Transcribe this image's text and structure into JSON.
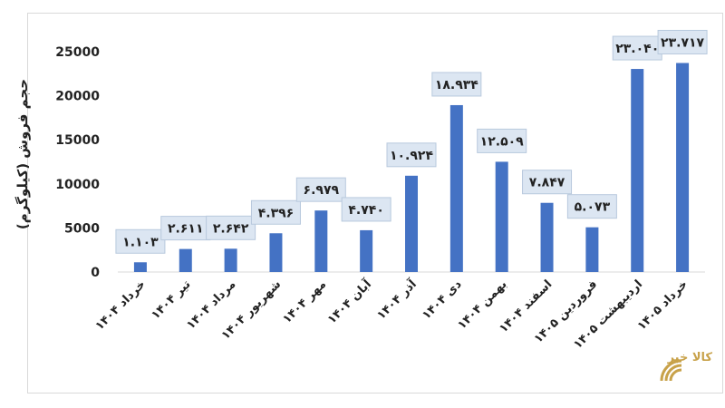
{
  "chart_data": {
    "type": "bar",
    "title": "",
    "ylabel": "حجم فروش (کیلوگرم)",
    "xlabel": "",
    "ylim": [
      0,
      25000
    ],
    "yticks": [
      0,
      5000,
      10000,
      15000,
      20000,
      25000
    ],
    "ytick_labels": [
      "0",
      "5000",
      "10000",
      "15000",
      "20000",
      "25000"
    ],
    "categories": [
      "خرداد ۱۴۰۴",
      "تیر ۱۴۰۴",
      "مرداد ۱۴۰۴",
      "شهریور ۱۴۰۴",
      "مهر ۱۴۰۴",
      "آبان ۱۴۰۴",
      "آذر ۱۴۰۴",
      "دی ۱۴۰۴",
      "بهمن ۱۴۰۴",
      "اسفند ۱۴۰۴",
      "فروردین ۱۴۰۵",
      "اردیبهشت ۱۴۰۵",
      "خرداد ۱۴۰۵"
    ],
    "values": [
      1103,
      2611,
      2642,
      4396,
      6979,
      4740,
      10924,
      18934,
      12509,
      7847,
      5073,
      23040,
      23717
    ],
    "data_labels": [
      "۱.۱۰۳",
      "۲.۶۱۱",
      "۲.۶۴۲",
      "۴.۳۹۶",
      "۶.۹۷۹",
      "۴.۷۴۰",
      "۱۰.۹۲۴",
      "۱۸.۹۳۴",
      "۱۲.۵۰۹",
      "۷.۸۴۷",
      "۵.۰۷۳",
      "۲۳.۰۴۰",
      "۲۳.۷۱۷"
    ],
    "grid": false,
    "colors": {
      "bar": "#4472C4",
      "label_box": "#dce6f2",
      "label_border": "#b8c9dd",
      "axis": "#d9d9d9"
    }
  },
  "logo": {
    "text": "کالا خبر"
  }
}
